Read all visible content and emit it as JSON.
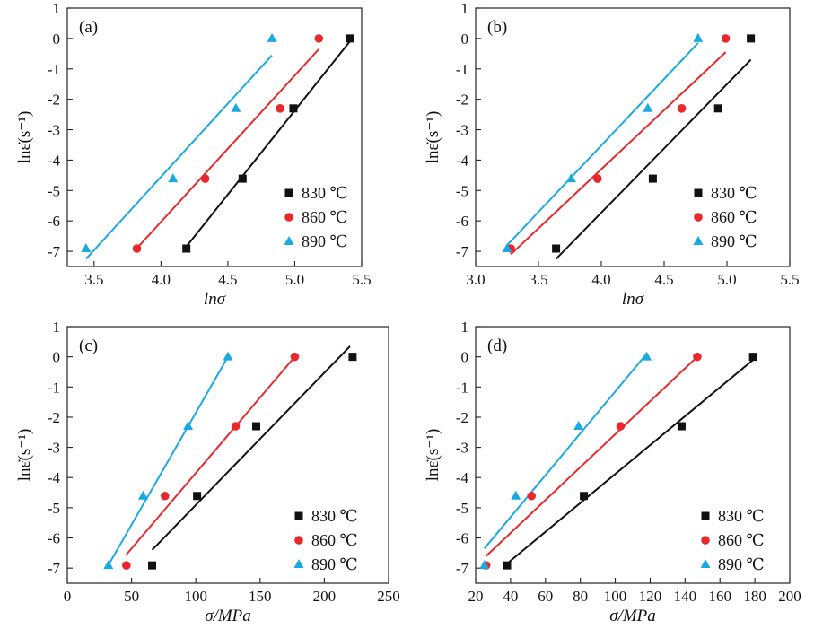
{
  "chart_data": [
    {
      "panel": "(a)",
      "type": "scatter",
      "xlabel": "lnσ",
      "ylabel": "lnε̇(s⁻¹)",
      "xlim": [
        3.3,
        5.5
      ],
      "ylim": [
        -7.5,
        1
      ],
      "xticks": [
        3.5,
        4.0,
        4.5,
        5.0,
        5.5
      ],
      "xtick_labels": [
        "3.5",
        "4.0",
        "4.5",
        "5.0",
        "5.5"
      ],
      "yticks": [
        1,
        0,
        -1,
        -2,
        -3,
        -4,
        -5,
        -6,
        -7
      ],
      "ytick_labels": [
        "1",
        "0",
        "-1",
        "-2",
        "-3",
        "-4",
        "-5",
        "-6",
        "-7"
      ],
      "legend_position": "bottom-right",
      "series": [
        {
          "name": "830 ℃",
          "marker": "square",
          "color": "#111111",
          "x": [
            4.19,
            4.61,
            4.99,
            5.41
          ],
          "y": [
            -6.91,
            -4.61,
            -2.3,
            0.0
          ],
          "fit": {
            "x": [
              4.18,
              5.42
            ],
            "y": [
              -6.9,
              -0.05
            ]
          }
        },
        {
          "name": "860 ℃",
          "marker": "circle",
          "color": "#e8282b",
          "x": [
            3.82,
            4.33,
            4.89,
            5.18
          ],
          "y": [
            -6.91,
            -4.61,
            -2.3,
            0.0
          ],
          "fit": {
            "x": [
              3.82,
              5.18
            ],
            "y": [
              -6.9,
              -0.35
            ]
          }
        },
        {
          "name": "890 ℃",
          "marker": "triangle",
          "color": "#1ba9e1",
          "x": [
            3.44,
            4.09,
            4.56,
            4.83
          ],
          "y": [
            -6.91,
            -4.61,
            -2.3,
            0.0
          ],
          "fit": {
            "x": [
              3.44,
              4.83
            ],
            "y": [
              -7.25,
              -0.55
            ]
          }
        }
      ]
    },
    {
      "panel": "(b)",
      "type": "scatter",
      "xlabel": "lnσ",
      "ylabel": "lnε̇(s⁻¹)",
      "xlim": [
        3.0,
        5.5
      ],
      "ylim": [
        -7.5,
        1
      ],
      "xticks": [
        3.0,
        3.5,
        4.0,
        4.5,
        5.0,
        5.5
      ],
      "xtick_labels": [
        "3.0",
        "3.5",
        "4.0",
        "4.5",
        "5.0",
        "5.5"
      ],
      "yticks": [
        1,
        0,
        -1,
        -2,
        -3,
        -4,
        -5,
        -6,
        -7
      ],
      "ytick_labels": [
        "1",
        "0",
        "-1",
        "-2",
        "-3",
        "-4",
        "-5",
        "-6",
        "-7"
      ],
      "legend_position": "bottom-right",
      "series": [
        {
          "name": "830 ℃",
          "marker": "square",
          "color": "#111111",
          "x": [
            3.64,
            4.41,
            4.93,
            5.19
          ],
          "y": [
            -6.91,
            -4.61,
            -2.3,
            0.0
          ],
          "fit": {
            "x": [
              3.64,
              5.19
            ],
            "y": [
              -7.25,
              -0.7
            ]
          }
        },
        {
          "name": "860 ℃",
          "marker": "circle",
          "color": "#e8282b",
          "x": [
            3.28,
            3.97,
            4.64,
            4.99
          ],
          "y": [
            -6.91,
            -4.61,
            -2.3,
            0.0
          ],
          "fit": {
            "x": [
              3.28,
              4.99
            ],
            "y": [
              -7.1,
              -0.45
            ]
          }
        },
        {
          "name": "890 ℃",
          "marker": "triangle",
          "color": "#1ba9e1",
          "x": [
            3.25,
            3.76,
            4.37,
            4.77
          ],
          "y": [
            -6.91,
            -4.61,
            -2.3,
            0.0
          ],
          "fit": {
            "x": [
              3.25,
              4.77
            ],
            "y": [
              -6.8,
              -0.15
            ]
          }
        }
      ]
    },
    {
      "panel": "(c)",
      "type": "scatter",
      "xlabel": "σ/MPa",
      "ylabel": "lnε̇(s⁻¹)",
      "xlim": [
        0,
        250
      ],
      "ylim": [
        -7.5,
        1
      ],
      "xticks": [
        0,
        50,
        100,
        150,
        200,
        250
      ],
      "xtick_labels": [
        "0",
        "50",
        "100",
        "150",
        "200",
        "250"
      ],
      "yticks": [
        1,
        0,
        -1,
        -2,
        -3,
        -4,
        -5,
        -6,
        -7
      ],
      "ytick_labels": [
        "1",
        "0",
        "-1",
        "-2",
        "-3",
        "-4",
        "-5",
        "-6",
        "-7"
      ],
      "legend_position": "bottom-right",
      "series": [
        {
          "name": "830 ℃",
          "marker": "square",
          "color": "#111111",
          "x": [
            66,
            101,
            147,
            222
          ],
          "y": [
            -6.91,
            -4.61,
            -2.3,
            0.0
          ],
          "fit": {
            "x": [
              66,
              220
            ],
            "y": [
              -6.4,
              0.35
            ]
          }
        },
        {
          "name": "860 ℃",
          "marker": "circle",
          "color": "#e8282b",
          "x": [
            46,
            76,
            131,
            177
          ],
          "y": [
            -6.91,
            -4.61,
            -2.3,
            0.0
          ],
          "fit": {
            "x": [
              46,
              177
            ],
            "y": [
              -6.55,
              0.0
            ]
          }
        },
        {
          "name": "890 ℃",
          "marker": "triangle",
          "color": "#1ba9e1",
          "x": [
            32,
            59,
            94,
            125
          ],
          "y": [
            -6.91,
            -4.61,
            -2.3,
            0.0
          ],
          "fit": {
            "x": [
              32,
              125
            ],
            "y": [
              -6.9,
              0.0
            ]
          }
        }
      ]
    },
    {
      "panel": "(d)",
      "type": "scatter",
      "xlabel": "σ/MPa",
      "ylabel": "lnε̇(s⁻¹)",
      "xlim": [
        20,
        200
      ],
      "ylim": [
        -7.5,
        1
      ],
      "xticks": [
        20,
        40,
        60,
        80,
        100,
        120,
        140,
        160,
        180,
        200
      ],
      "xtick_labels": [
        "20",
        "40",
        "60",
        "80",
        "100",
        "120",
        "140",
        "160",
        "180",
        "200"
      ],
      "yticks": [
        1,
        0,
        -1,
        -2,
        -3,
        -4,
        -5,
        -6,
        -7
      ],
      "ytick_labels": [
        "1",
        "0",
        "-1",
        "-2",
        "-3",
        "-4",
        "-5",
        "-6",
        "-7"
      ],
      "legend_position": "bottom-right",
      "series": [
        {
          "name": "830 ℃",
          "marker": "square",
          "color": "#111111",
          "x": [
            38,
            82,
            138,
            179
          ],
          "y": [
            -6.91,
            -4.61,
            -2.3,
            0.0
          ],
          "fit": {
            "x": [
              38,
              179
            ],
            "y": [
              -6.85,
              -0.1
            ]
          }
        },
        {
          "name": "860 ℃",
          "marker": "circle",
          "color": "#e8282b",
          "x": [
            26,
            52,
            103,
            147
          ],
          "y": [
            -6.91,
            -4.61,
            -2.3,
            0.0
          ],
          "fit": {
            "x": [
              26,
              147
            ],
            "y": [
              -6.6,
              0.0
            ]
          }
        },
        {
          "name": "890 ℃",
          "marker": "triangle",
          "color": "#1ba9e1",
          "x": [
            25,
            43,
            79,
            118
          ],
          "y": [
            -6.91,
            -4.61,
            -2.3,
            0.0
          ],
          "fit": {
            "x": [
              25,
              118
            ],
            "y": [
              -6.35,
              0.1
            ]
          }
        }
      ]
    }
  ]
}
